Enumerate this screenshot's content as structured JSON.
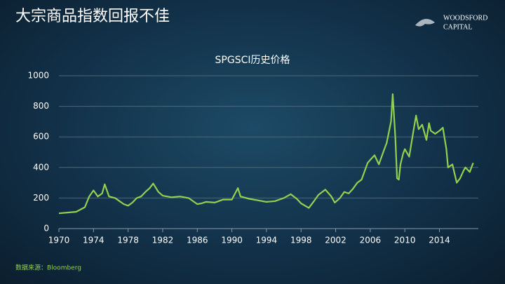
{
  "slide": {
    "title": "大宗商品指数回报不佳",
    "logo": [
      "WOODSFORD",
      "CAPITAL"
    ],
    "source": "数据来源：Bloomberg"
  },
  "chart_data": {
    "type": "line",
    "title": "SPGSCI历史价格",
    "color": "#92d050",
    "x": [
      1970,
      1971,
      1972,
      1973,
      1973.5,
      1974,
      1974.5,
      1975,
      1975.3,
      1975.8,
      1976.5,
      1977,
      1977.5,
      1978,
      1978.5,
      1979,
      1979.5,
      1980,
      1980.5,
      1980.9,
      1981.5,
      1982,
      1983,
      1984,
      1985,
      1986,
      1986.5,
      1987,
      1988,
      1989,
      1990,
      1990.7,
      1991,
      1992,
      1993,
      1994,
      1995,
      1996,
      1996.8,
      1997.5,
      1998,
      1998.9,
      1999.5,
      2000,
      2000.8,
      2001.5,
      2001.9,
      2002.5,
      2003,
      2003.5,
      2004,
      2004.5,
      2005,
      2005.7,
      2006,
      2006.5,
      2007,
      2007.5,
      2007.9,
      2008.4,
      2008.6,
      2008.9,
      2009.1,
      2009.3,
      2009.5,
      2009.8,
      2010,
      2010.5,
      2011,
      2011.3,
      2011.6,
      2012,
      2012.5,
      2012.8,
      2013,
      2013.5,
      2014,
      2014.4,
      2014.8,
      2015,
      2015.5,
      2016,
      2016.4,
      2016.8,
      2017,
      2017.5,
      2017.9
    ],
    "values": [
      100,
      105,
      110,
      140,
      210,
      250,
      210,
      230,
      290,
      210,
      200,
      180,
      160,
      150,
      170,
      200,
      210,
      240,
      265,
      295,
      240,
      215,
      205,
      210,
      200,
      160,
      165,
      175,
      170,
      190,
      190,
      265,
      210,
      195,
      185,
      175,
      180,
      200,
      225,
      195,
      165,
      135,
      180,
      220,
      255,
      210,
      170,
      200,
      240,
      230,
      260,
      300,
      320,
      430,
      450,
      480,
      420,
      500,
      560,
      700,
      880,
      600,
      330,
      320,
      420,
      490,
      520,
      470,
      640,
      740,
      650,
      680,
      580,
      690,
      640,
      620,
      640,
      660,
      520,
      400,
      420,
      300,
      330,
      380,
      400,
      370,
      430
    ],
    "xlim": [
      1970,
      2018.5
    ],
    "xticks": [
      1970,
      1974,
      1978,
      1982,
      1986,
      1990,
      1994,
      1998,
      2002,
      2006,
      2010,
      2014
    ],
    "ylim": [
      0,
      1000
    ],
    "yticks": [
      0,
      200,
      400,
      600,
      800,
      1000
    ],
    "grid": true
  }
}
